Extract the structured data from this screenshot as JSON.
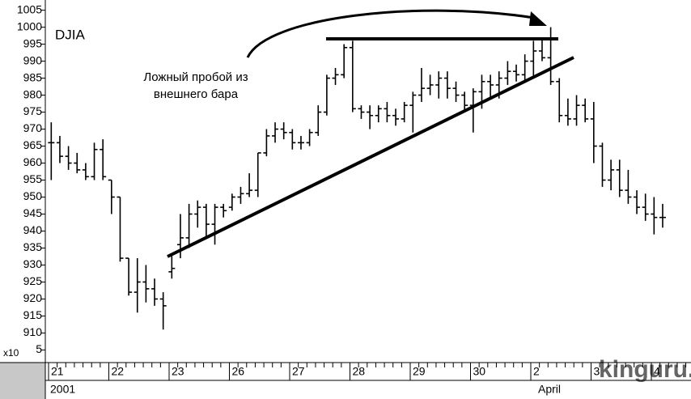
{
  "chart_data": {
    "type": "ohlc",
    "title": "DJIA",
    "annotations": [
      "Ложный пробой из",
      "внешнего бара"
    ],
    "axis_multiplier": "x10",
    "year_label": "2001",
    "month_label": "April",
    "watermark": "kinguru.net",
    "color": "#000000",
    "categories": [
      "21",
      "22",
      "23",
      "26",
      "27",
      "28",
      "29",
      "30",
      "2",
      "3",
      "4"
    ],
    "ohlc": [
      [
        [
          966,
          972,
          955,
          966
        ],
        [
          966,
          968,
          960,
          962
        ],
        [
          962,
          965,
          958,
          960
        ],
        [
          960,
          963,
          957,
          958
        ],
        [
          958,
          960,
          955,
          956
        ],
        [
          956,
          966,
          955,
          964
        ],
        [
          964,
          967,
          955,
          956
        ]
      ],
      [
        [
          955,
          955,
          945,
          950
        ],
        [
          950,
          950,
          931,
          932
        ],
        [
          932,
          932,
          921,
          922
        ],
        [
          922,
          932,
          916,
          925
        ],
        [
          925,
          930,
          919,
          923
        ],
        [
          923,
          926,
          918,
          920
        ],
        [
          920,
          922,
          911,
          918
        ]
      ],
      [
        [
          928,
          933,
          926,
          929
        ],
        [
          936,
          945,
          932,
          938
        ],
        [
          938,
          948,
          935,
          945
        ],
        [
          945,
          949,
          941,
          947
        ],
        [
          947,
          948,
          938,
          942
        ],
        [
          942,
          948,
          936,
          947
        ],
        [
          947,
          948,
          944,
          946
        ]
      ],
      [
        [
          947,
          951,
          946,
          950
        ],
        [
          950,
          953,
          948,
          951
        ],
        [
          951,
          957,
          950,
          952
        ],
        [
          952,
          963,
          950,
          963
        ],
        [
          963,
          970,
          962,
          968
        ],
        [
          968,
          972,
          966,
          970
        ],
        [
          970,
          972,
          967,
          969
        ]
      ],
      [
        [
          969,
          970,
          964,
          966
        ],
        [
          966,
          968,
          964,
          966
        ],
        [
          966,
          970,
          965,
          969
        ],
        [
          969,
          977,
          968,
          975
        ],
        [
          975,
          986,
          974,
          985
        ],
        [
          985,
          988,
          983,
          986
        ],
        [
          986,
          995,
          985,
          994
        ]
      ],
      [
        [
          994,
          996,
          975,
          976
        ],
        [
          976,
          977,
          973,
          975
        ],
        [
          975,
          977,
          970,
          974
        ],
        [
          974,
          977,
          972,
          976
        ],
        [
          976,
          978,
          972,
          974
        ],
        [
          974,
          976,
          971,
          973
        ],
        [
          973,
          978,
          972,
          977
        ]
      ],
      [
        [
          977,
          981,
          969,
          980
        ],
        [
          980,
          988,
          978,
          982
        ],
        [
          982,
          986,
          980,
          983
        ],
        [
          983,
          987,
          979,
          985
        ],
        [
          985,
          987,
          979,
          982
        ],
        [
          982,
          984,
          978,
          980
        ],
        [
          980,
          981,
          975,
          977
        ]
      ],
      [
        [
          977,
          982,
          969,
          981
        ],
        [
          981,
          986,
          976,
          984
        ],
        [
          984,
          986,
          979,
          983
        ],
        [
          983,
          987,
          979,
          985
        ],
        [
          985,
          990,
          983,
          987
        ],
        [
          987,
          989,
          984,
          986
        ],
        [
          986,
          992,
          984,
          990
        ]
      ],
      [
        [
          990,
          996,
          985,
          993
        ],
        [
          993,
          997,
          990,
          991
        ],
        [
          991,
          1000,
          983,
          984
        ],
        [
          984,
          985,
          972,
          974
        ],
        [
          974,
          979,
          971,
          973
        ],
        [
          973,
          980,
          971,
          977
        ],
        [
          977,
          979,
          972,
          973
        ]
      ],
      [
        [
          973,
          978,
          960,
          965
        ],
        [
          965,
          966,
          953,
          955
        ],
        [
          955,
          961,
          952,
          958
        ],
        [
          958,
          961,
          950,
          952
        ],
        [
          952,
          958,
          948,
          950
        ],
        [
          950,
          952,
          945,
          947
        ],
        [
          947,
          951,
          943,
          945
        ]
      ],
      [
        [
          945,
          950,
          939,
          944
        ],
        [
          944,
          948,
          941,
          944
        ]
      ]
    ],
    "ylim": [
      902,
      1008
    ],
    "yticks": [
      {
        "value": 905,
        "label": "5"
      },
      910,
      915,
      920,
      925,
      930,
      935,
      940,
      945,
      950,
      955,
      960,
      965,
      970,
      975,
      980,
      985,
      990,
      995,
      1000,
      1005
    ]
  }
}
